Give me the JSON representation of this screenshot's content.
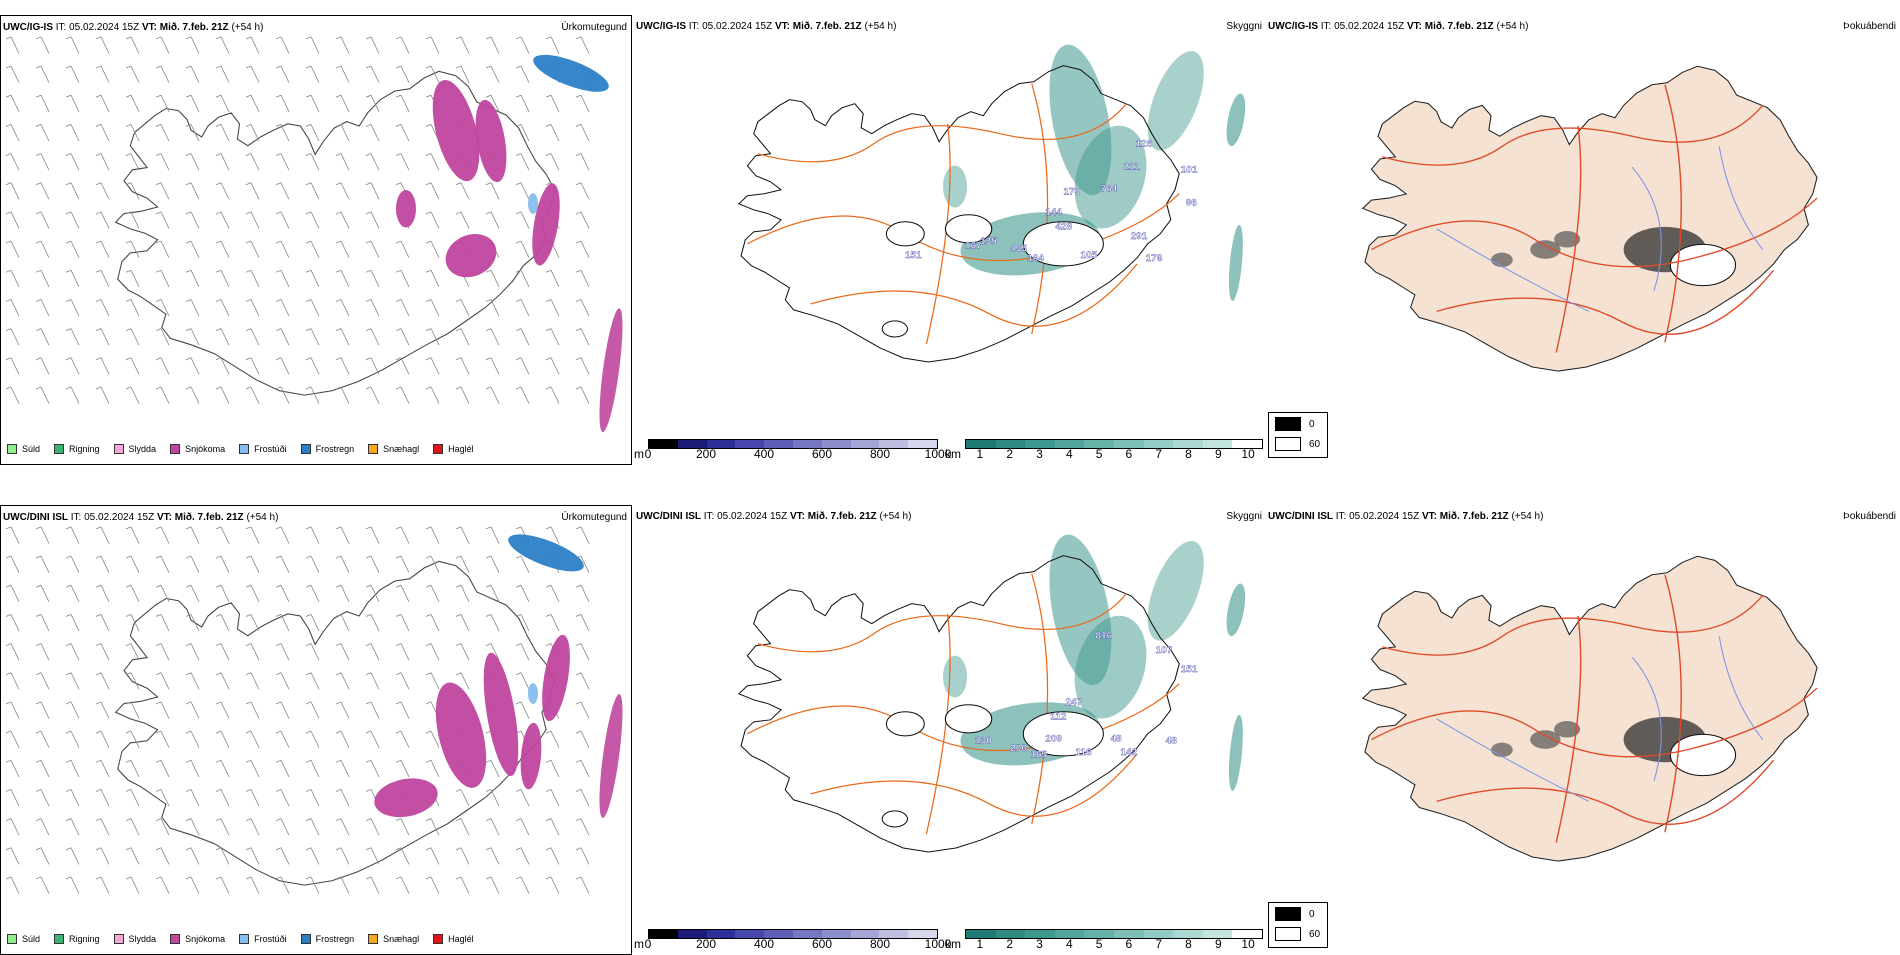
{
  "rows": [
    {
      "model": "UWC/IG-IS",
      "it_label": "IT: 05.02.2024 15Z",
      "vt_label": "VT: Mið. 7.feb. 21Z",
      "offset": "(+54 h)",
      "precip_field": "Úrkomutegund",
      "visibility_field": "Skyggni",
      "cloud_field": "Þokuábendi",
      "height_labels": [
        "126",
        "211",
        "101",
        "764",
        "179",
        "96",
        "144",
        "428",
        "291",
        "135",
        "495",
        "164",
        "105",
        "176",
        "167",
        "151"
      ]
    },
    {
      "model": "UWC/DINI ISL",
      "it_label": "IT: 05.02.2024 15Z",
      "vt_label": "VT: Mið. 7.feb. 21Z",
      "offset": "(+54 h)",
      "precip_field": "Úrkomutegund",
      "visibility_field": "Skyggni",
      "cloud_field": "Þokuábendi",
      "height_labels": [
        "816",
        "107",
        "151",
        "247",
        "112",
        "209",
        "130",
        "206",
        "165",
        "116",
        "48",
        "142",
        "48"
      ]
    }
  ],
  "precip_legend": [
    {
      "label": "Súld",
      "color": "#90ee90"
    },
    {
      "label": "Rigning",
      "color": "#3cb371"
    },
    {
      "label": "Slydda",
      "color": "#f4a6d7"
    },
    {
      "label": "Snjókoma",
      "color": "#c0469f"
    },
    {
      "label": "Frostúði",
      "color": "#87bdf0"
    },
    {
      "label": "Frostregn",
      "color": "#2c7fc7"
    },
    {
      "label": "Snæhagl",
      "color": "#f5a623"
    },
    {
      "label": "Haglél",
      "color": "#e0141c"
    }
  ],
  "height_scale": {
    "unit": "m",
    "ticks": [
      "0",
      "200",
      "400",
      "600",
      "800",
      "1000"
    ],
    "colors": [
      "#000000",
      "#1c1c78",
      "#2e2e98",
      "#4646ac",
      "#5e5eb8",
      "#7676c2",
      "#8e8ecc",
      "#a6a6d6",
      "#bebee0",
      "#d6d6ec"
    ]
  },
  "visibility_scale": {
    "unit": "km",
    "ticks": [
      "1",
      "2",
      "3",
      "4",
      "5",
      "6",
      "7",
      "8",
      "9",
      "10"
    ],
    "colors": [
      "#1f7a74",
      "#2f8a82",
      "#3f988f",
      "#52a59c",
      "#66b2a9",
      "#7cbfb6",
      "#93ccc4",
      "#abd8d1",
      "#c4e4df",
      "#ffffff"
    ]
  },
  "cloud_legend": [
    {
      "label": "0",
      "color": "#000000"
    },
    {
      "label": "60",
      "color": "#ffffff"
    }
  ],
  "colors": {
    "land_fill": "#f5e2d2",
    "road": "#e86a1a",
    "road_cloud": "#e04a28",
    "river": "#7e95e6",
    "snow": "#c0469f",
    "frost_rain": "#2c7fc7",
    "frost_drizzle": "#87bdf0",
    "vis_teal": "#3f988f",
    "height_blue": "#4646ac"
  }
}
